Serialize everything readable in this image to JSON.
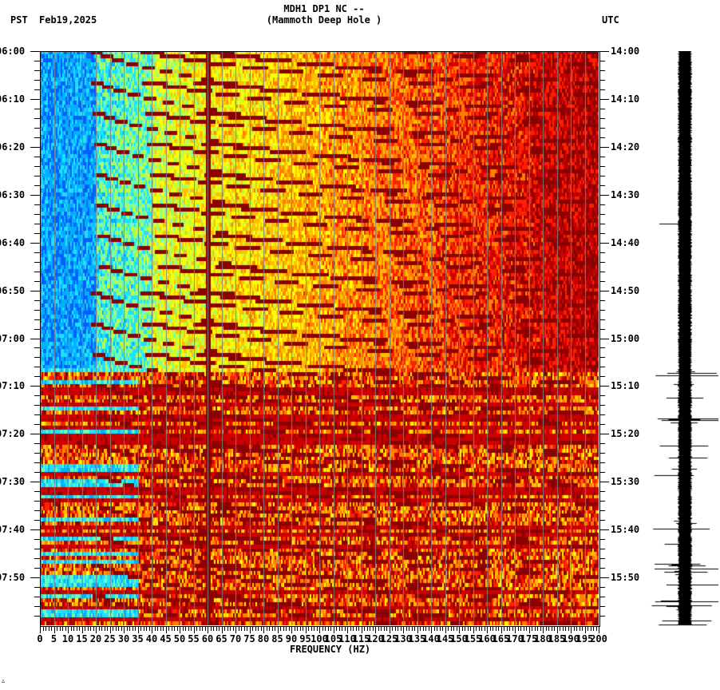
{
  "header": {
    "station_line": "MDH1 DP1 NC --",
    "station_name": "(Mammoth Deep Hole )",
    "left_timezone": "PST",
    "date": "Feb19,2025",
    "right_timezone": "UTC"
  },
  "footer": {
    "corner_mark": "∴"
  },
  "chart_data": {
    "type": "heatmap",
    "title": "MDH1 DP1 NC -- (Mammoth Deep Hole )",
    "subtitle": "Feb19,2025",
    "xlabel": "FREQUENCY (HZ)",
    "ylabel_left": "PST",
    "ylabel_right": "UTC",
    "xlim": [
      0,
      200
    ],
    "x_ticks": [
      0,
      5,
      10,
      15,
      20,
      25,
      30,
      35,
      40,
      45,
      50,
      55,
      60,
      65,
      70,
      75,
      80,
      85,
      90,
      95,
      100,
      105,
      110,
      115,
      120,
      125,
      130,
      135,
      140,
      145,
      150,
      155,
      160,
      165,
      170,
      175,
      180,
      185,
      190,
      195,
      200
    ],
    "x_tick_labels": [
      "0",
      "5",
      "10",
      "15",
      "20",
      "25",
      "30",
      "35",
      "40",
      "45",
      "50",
      "55",
      "60",
      "65",
      "70",
      "75",
      "80",
      "85",
      "90",
      "95",
      "100",
      "105",
      "110",
      "115",
      "120",
      "125",
      "130",
      "135",
      "140",
      "145",
      "150",
      "155",
      "160",
      "165",
      "170",
      "175",
      "180",
      "185",
      "190",
      "195",
      "200"
    ],
    "y_ticks_left": [
      "06:00",
      "06:10",
      "06:20",
      "06:30",
      "06:40",
      "06:50",
      "07:00",
      "07:10",
      "07:20",
      "07:30",
      "07:40",
      "07:50"
    ],
    "y_ticks_right": [
      "14:00",
      "14:10",
      "14:20",
      "14:30",
      "14:40",
      "14:50",
      "15:00",
      "15:10",
      "15:20",
      "15:30",
      "15:40",
      "15:50"
    ],
    "time_range_pst": [
      "06:00",
      "08:00"
    ],
    "time_range_utc": [
      "14:00",
      "16:00"
    ],
    "colormap": [
      "#0000cc",
      "#0060ff",
      "#00b0ff",
      "#20e0ff",
      "#70ffb0",
      "#c0ff40",
      "#ffff00",
      "#ffc000",
      "#ff8000",
      "#ff2000",
      "#cc0000",
      "#8b0000"
    ],
    "grid": true,
    "grid_color": "#808080",
    "persistent_lines_hz": [
      60,
      180
    ],
    "features": {
      "noise_onset_pst": "07:07",
      "low_freq_quiet_until_pst": "07:06",
      "curved_harmonic_sweeps": true,
      "seismogram_trace_right": true,
      "seismogram_spikes_after_pst": "07:08"
    }
  }
}
